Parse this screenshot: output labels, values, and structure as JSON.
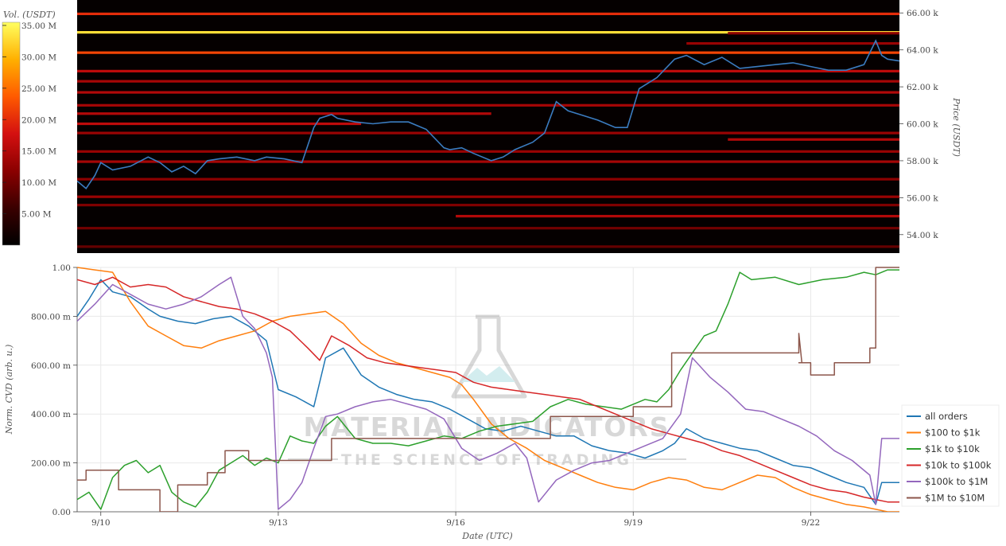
{
  "watermark": {
    "title": "MATERIAL INDICATORS",
    "subtitle": "THE SCIENCE OF TRADING"
  },
  "chart_data": [
    {
      "type": "heatmap",
      "title": "",
      "colorbar": {
        "title": "Vol. (USDT)",
        "tick_labels": [
          "35.00 M",
          "30.00 M",
          "25.00 M",
          "20.00 M",
          "15.00 M",
          "10.00 M",
          "5.00 M"
        ],
        "tick_values": [
          35,
          30,
          25,
          20,
          15,
          10,
          5
        ],
        "range": [
          0,
          35.5
        ],
        "colorscale": [
          "#000000",
          "#3a0000",
          "#8b0000",
          "#d41010",
          "#ff5a00",
          "#ffb000",
          "#ffff60"
        ]
      },
      "ylabel": "Price (USDT)",
      "ylim": [
        53000,
        66700
      ],
      "y_tick_labels": [
        "66.00 k",
        "64.00 k",
        "62.00 k",
        "60.00 k",
        "58.00 k",
        "56.00 k",
        "54.00 k"
      ],
      "y_tick_values": [
        66000,
        64000,
        62000,
        60000,
        58000,
        56000,
        54000
      ],
      "xlim": [
        9.6,
        23.5
      ],
      "price_line": {
        "color": "#3b7cc0",
        "x": [
          9.6,
          9.75,
          9.9,
          10.0,
          10.2,
          10.5,
          10.8,
          11.0,
          11.2,
          11.4,
          11.6,
          11.8,
          12.0,
          12.3,
          12.6,
          12.8,
          13.1,
          13.4,
          13.6,
          13.7,
          13.9,
          14.0,
          14.3,
          14.6,
          14.9,
          15.2,
          15.5,
          15.8,
          15.9,
          16.1,
          16.3,
          16.6,
          16.8,
          17.0,
          17.3,
          17.5,
          17.7,
          17.9,
          18.1,
          18.4,
          18.7,
          18.9,
          19.1,
          19.4,
          19.7,
          19.9,
          20.2,
          20.5,
          20.8,
          21.1,
          21.4,
          21.7,
          22.0,
          22.3,
          22.6,
          22.9,
          23.1,
          23.2,
          23.3,
          23.5
        ],
        "y": [
          56900,
          56500,
          57200,
          57900,
          57500,
          57700,
          58200,
          57900,
          57400,
          57700,
          57300,
          58000,
          58100,
          58200,
          58000,
          58200,
          58100,
          57900,
          59800,
          60300,
          60500,
          60300,
          60100,
          60000,
          60100,
          60100,
          59700,
          58700,
          58600,
          58700,
          58400,
          58000,
          58200,
          58600,
          59000,
          59500,
          61200,
          60700,
          60500,
          60200,
          59800,
          59800,
          61900,
          62500,
          63500,
          63700,
          63200,
          63600,
          63000,
          63100,
          63200,
          63300,
          63100,
          62900,
          62900,
          63200,
          64500,
          63700,
          63500,
          63400
        ]
      },
      "liquidity_bands": [
        {
          "price": 64950,
          "x0": 9.6,
          "x1": 23.5,
          "volume": 33
        },
        {
          "price": 63850,
          "x0": 9.6,
          "x1": 23.5,
          "volume": 22
        },
        {
          "price": 65950,
          "x0": 9.6,
          "x1": 23.5,
          "volume": 20
        },
        {
          "price": 62850,
          "x0": 9.6,
          "x1": 23.5,
          "volume": 16
        },
        {
          "price": 62300,
          "x0": 9.6,
          "x1": 23.5,
          "volume": 14
        },
        {
          "price": 61700,
          "x0": 9.6,
          "x1": 23.5,
          "volume": 15
        },
        {
          "price": 61000,
          "x0": 9.6,
          "x1": 23.5,
          "volume": 14
        },
        {
          "price": 60550,
          "x0": 9.6,
          "x1": 16.6,
          "volume": 15
        },
        {
          "price": 60000,
          "x0": 9.6,
          "x1": 14.4,
          "volume": 16
        },
        {
          "price": 59500,
          "x0": 9.6,
          "x1": 23.5,
          "volume": 13
        },
        {
          "price": 59150,
          "x0": 20.6,
          "x1": 23.5,
          "volume": 15
        },
        {
          "price": 58500,
          "x0": 9.6,
          "x1": 23.5,
          "volume": 13
        },
        {
          "price": 57950,
          "x0": 9.6,
          "x1": 23.5,
          "volume": 14
        },
        {
          "price": 57000,
          "x0": 9.6,
          "x1": 23.5,
          "volume": 12
        },
        {
          "price": 56050,
          "x0": 9.6,
          "x1": 23.5,
          "volume": 13
        },
        {
          "price": 55600,
          "x0": 9.6,
          "x1": 23.5,
          "volume": 11
        },
        {
          "price": 55000,
          "x0": 16.0,
          "x1": 23.5,
          "volume": 15
        },
        {
          "price": 54350,
          "x0": 9.6,
          "x1": 23.5,
          "volume": 10
        },
        {
          "price": 53350,
          "x0": 9.6,
          "x1": 23.5,
          "volume": 9
        },
        {
          "price": 64900,
          "x0": 20.6,
          "x1": 23.5,
          "volume": 12
        },
        {
          "price": 64350,
          "x0": 19.9,
          "x1": 23.5,
          "volume": 13
        }
      ]
    },
    {
      "type": "line",
      "title": "",
      "xlabel": "Date (UTC)",
      "ylabel": "Norm. CVD (arb. u.)",
      "ylim": [
        0,
        1
      ],
      "xlim": [
        9.6,
        23.5
      ],
      "x_tick_labels": [
        "9/10",
        "9/13",
        "9/16",
        "9/19",
        "9/22"
      ],
      "x_tick_values": [
        10,
        13,
        16,
        19,
        22
      ],
      "y_tick_labels": [
        "1.00",
        "800.00 m",
        "600.00 m",
        "400.00 m",
        "200.00 m",
        "0.00"
      ],
      "y_tick_values": [
        1.0,
        0.8,
        0.6,
        0.4,
        0.2,
        0.0
      ],
      "grid": true,
      "legend_position": "right",
      "series": [
        {
          "name": "all orders",
          "color": "#1f77b4",
          "x": [
            9.6,
            9.8,
            10.0,
            10.2,
            10.5,
            10.8,
            11.0,
            11.3,
            11.6,
            11.9,
            12.2,
            12.5,
            12.8,
            13.0,
            13.3,
            13.6,
            13.8,
            14.1,
            14.4,
            14.7,
            15.0,
            15.3,
            15.6,
            15.9,
            16.2,
            16.5,
            16.8,
            17.1,
            17.4,
            17.7,
            18.0,
            18.3,
            18.6,
            18.9,
            19.2,
            19.5,
            19.7,
            19.9,
            20.2,
            20.5,
            20.8,
            21.1,
            21.4,
            21.7,
            22.0,
            22.3,
            22.6,
            22.9,
            23.1,
            23.2,
            23.5
          ],
          "y": [
            0.8,
            0.87,
            0.95,
            0.9,
            0.88,
            0.83,
            0.8,
            0.78,
            0.77,
            0.79,
            0.8,
            0.76,
            0.7,
            0.5,
            0.47,
            0.43,
            0.63,
            0.67,
            0.56,
            0.51,
            0.48,
            0.46,
            0.45,
            0.42,
            0.38,
            0.34,
            0.33,
            0.35,
            0.33,
            0.31,
            0.31,
            0.27,
            0.25,
            0.24,
            0.22,
            0.25,
            0.28,
            0.34,
            0.3,
            0.28,
            0.26,
            0.25,
            0.22,
            0.19,
            0.18,
            0.15,
            0.12,
            0.1,
            0.03,
            0.12,
            0.12
          ]
        },
        {
          "name": "$100 to $1k",
          "color": "#ff7f0e",
          "x": [
            9.6,
            9.9,
            10.2,
            10.5,
            10.8,
            11.1,
            11.4,
            11.7,
            12.0,
            12.3,
            12.6,
            12.9,
            13.2,
            13.5,
            13.8,
            14.1,
            14.4,
            14.7,
            15.0,
            15.3,
            15.6,
            15.9,
            16.1,
            16.3,
            16.6,
            16.9,
            17.2,
            17.5,
            17.8,
            18.1,
            18.4,
            18.7,
            19.0,
            19.3,
            19.6,
            19.9,
            20.2,
            20.5,
            20.8,
            21.1,
            21.4,
            21.7,
            22.0,
            22.3,
            22.6,
            22.9,
            23.1,
            23.3,
            23.5
          ],
          "y": [
            1.0,
            0.99,
            0.98,
            0.86,
            0.76,
            0.72,
            0.68,
            0.67,
            0.7,
            0.72,
            0.74,
            0.78,
            0.8,
            0.81,
            0.82,
            0.77,
            0.69,
            0.64,
            0.61,
            0.59,
            0.57,
            0.55,
            0.52,
            0.46,
            0.36,
            0.3,
            0.26,
            0.21,
            0.18,
            0.15,
            0.12,
            0.1,
            0.09,
            0.12,
            0.14,
            0.13,
            0.1,
            0.09,
            0.12,
            0.15,
            0.14,
            0.1,
            0.07,
            0.05,
            0.03,
            0.02,
            0.01,
            0.0,
            0.0
          ]
        },
        {
          "name": "$1k to $10k",
          "color": "#2ca02c",
          "x": [
            9.6,
            9.8,
            10.0,
            10.2,
            10.4,
            10.6,
            10.8,
            11.0,
            11.2,
            11.4,
            11.6,
            11.8,
            12.0,
            12.2,
            12.4,
            12.6,
            12.8,
            13.0,
            13.2,
            13.4,
            13.6,
            13.8,
            14.0,
            14.3,
            14.6,
            14.9,
            15.2,
            15.5,
            15.8,
            16.1,
            16.4,
            16.7,
            17.0,
            17.3,
            17.6,
            17.9,
            18.2,
            18.5,
            18.8,
            19.0,
            19.2,
            19.4,
            19.6,
            19.8,
            20.0,
            20.2,
            20.4,
            20.6,
            20.8,
            21.0,
            21.4,
            21.8,
            22.2,
            22.6,
            22.9,
            23.1,
            23.3,
            23.5
          ],
          "y": [
            0.05,
            0.08,
            0.01,
            0.14,
            0.19,
            0.21,
            0.16,
            0.19,
            0.08,
            0.04,
            0.02,
            0.08,
            0.17,
            0.2,
            0.23,
            0.19,
            0.22,
            0.2,
            0.31,
            0.29,
            0.28,
            0.35,
            0.39,
            0.3,
            0.28,
            0.28,
            0.27,
            0.29,
            0.31,
            0.3,
            0.33,
            0.35,
            0.36,
            0.37,
            0.43,
            0.46,
            0.44,
            0.43,
            0.42,
            0.44,
            0.46,
            0.45,
            0.5,
            0.58,
            0.65,
            0.72,
            0.74,
            0.85,
            0.98,
            0.95,
            0.96,
            0.93,
            0.95,
            0.96,
            0.98,
            0.97,
            0.99,
            0.99
          ]
        },
        {
          "name": "$10k to $100k",
          "color": "#d62728",
          "x": [
            9.6,
            9.9,
            10.2,
            10.5,
            10.8,
            11.1,
            11.4,
            11.7,
            12.0,
            12.3,
            12.6,
            12.9,
            13.2,
            13.5,
            13.7,
            13.9,
            14.2,
            14.5,
            14.8,
            15.1,
            15.4,
            15.7,
            16.0,
            16.3,
            16.6,
            16.9,
            17.2,
            17.5,
            17.8,
            18.1,
            18.4,
            18.7,
            19.0,
            19.3,
            19.6,
            19.9,
            20.2,
            20.5,
            20.8,
            21.1,
            21.4,
            21.7,
            22.0,
            22.3,
            22.6,
            22.9,
            23.1,
            23.3,
            23.5
          ],
          "y": [
            0.95,
            0.93,
            0.96,
            0.92,
            0.93,
            0.92,
            0.88,
            0.86,
            0.84,
            0.83,
            0.81,
            0.78,
            0.74,
            0.67,
            0.62,
            0.72,
            0.68,
            0.63,
            0.61,
            0.6,
            0.59,
            0.58,
            0.57,
            0.53,
            0.51,
            0.5,
            0.49,
            0.48,
            0.47,
            0.46,
            0.43,
            0.4,
            0.37,
            0.34,
            0.32,
            0.3,
            0.28,
            0.25,
            0.23,
            0.2,
            0.17,
            0.14,
            0.11,
            0.09,
            0.08,
            0.06,
            0.05,
            0.04,
            0.04
          ]
        },
        {
          "name": "$100k to $1M",
          "color": "#9467bd",
          "x": [
            9.6,
            9.9,
            10.2,
            10.5,
            10.8,
            11.1,
            11.4,
            11.7,
            12.0,
            12.2,
            12.4,
            12.6,
            12.8,
            12.9,
            13.0,
            13.2,
            13.4,
            13.6,
            13.8,
            14.0,
            14.3,
            14.6,
            14.9,
            15.2,
            15.5,
            15.8,
            16.1,
            16.4,
            16.7,
            17.0,
            17.2,
            17.4,
            17.7,
            18.0,
            18.3,
            18.6,
            18.9,
            19.2,
            19.5,
            19.8,
            20.0,
            20.3,
            20.6,
            20.9,
            21.2,
            21.5,
            21.8,
            22.1,
            22.4,
            22.7,
            23.0,
            23.1,
            23.2,
            23.5
          ],
          "y": [
            0.78,
            0.85,
            0.93,
            0.89,
            0.85,
            0.83,
            0.85,
            0.88,
            0.93,
            0.96,
            0.8,
            0.75,
            0.65,
            0.55,
            0.01,
            0.05,
            0.12,
            0.26,
            0.39,
            0.4,
            0.43,
            0.45,
            0.46,
            0.44,
            0.42,
            0.38,
            0.26,
            0.21,
            0.24,
            0.28,
            0.22,
            0.04,
            0.13,
            0.17,
            0.2,
            0.21,
            0.24,
            0.27,
            0.3,
            0.4,
            0.63,
            0.55,
            0.49,
            0.42,
            0.41,
            0.38,
            0.35,
            0.31,
            0.25,
            0.21,
            0.15,
            0.03,
            0.3,
            0.3
          ]
        },
        {
          "name": "$1M to $10M",
          "color": "#8c564b",
          "x": [
            9.6,
            9.75,
            9.75,
            10.3,
            10.3,
            10.8,
            10.8,
            11.0,
            11.0,
            11.3,
            11.3,
            11.8,
            11.8,
            12.1,
            12.1,
            12.5,
            12.5,
            12.7,
            12.7,
            13.5,
            13.5,
            13.9,
            13.9,
            16.8,
            16.8,
            17.6,
            17.6,
            18.3,
            18.3,
            19.0,
            19.0,
            19.65,
            19.65,
            21.8,
            21.8,
            21.85,
            21.85,
            21.8,
            21.8,
            22.0,
            22.0,
            22.4,
            22.4,
            23.0,
            23.0,
            23.1,
            23.1,
            23.5
          ],
          "y": [
            0.13,
            0.13,
            0.17,
            0.17,
            0.09,
            0.09,
            0.09,
            0.09,
            0.0,
            0.0,
            0.11,
            0.11,
            0.16,
            0.16,
            0.25,
            0.25,
            0.21,
            0.21,
            0.21,
            0.21,
            0.21,
            0.21,
            0.3,
            0.3,
            0.3,
            0.3,
            0.39,
            0.39,
            0.39,
            0.39,
            0.43,
            0.43,
            0.65,
            0.65,
            0.73,
            0.61,
            0.61,
            0.61,
            0.61,
            0.61,
            0.56,
            0.56,
            0.61,
            0.61,
            0.67,
            0.67,
            1.0,
            1.0
          ]
        }
      ]
    }
  ]
}
